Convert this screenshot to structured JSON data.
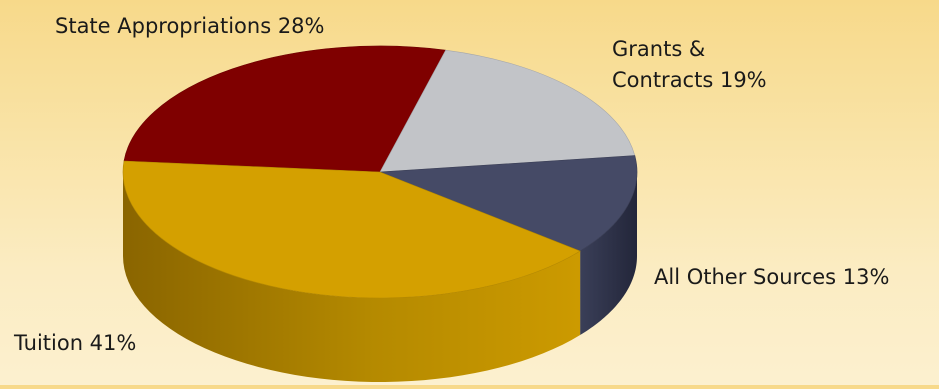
{
  "chart_data": {
    "type": "pie",
    "title": "",
    "slices": [
      {
        "label_lines": [
          "State Appropriations 28%"
        ],
        "value": 28,
        "color": "#7f0000",
        "key": "state-appropriations"
      },
      {
        "label_lines": [
          "Grants &",
          "Contracts 19%"
        ],
        "value": 19,
        "color": "#c2c4c8",
        "key": "grants-contracts"
      },
      {
        "label_lines": [
          "All Other Sources 13%"
        ],
        "value": 13,
        "color": "#454a66",
        "key": "all-other-sources"
      },
      {
        "label_lines": [
          "Tuition 41%"
        ],
        "value": 41,
        "color": "#d4a000",
        "key": "tuition"
      }
    ]
  }
}
